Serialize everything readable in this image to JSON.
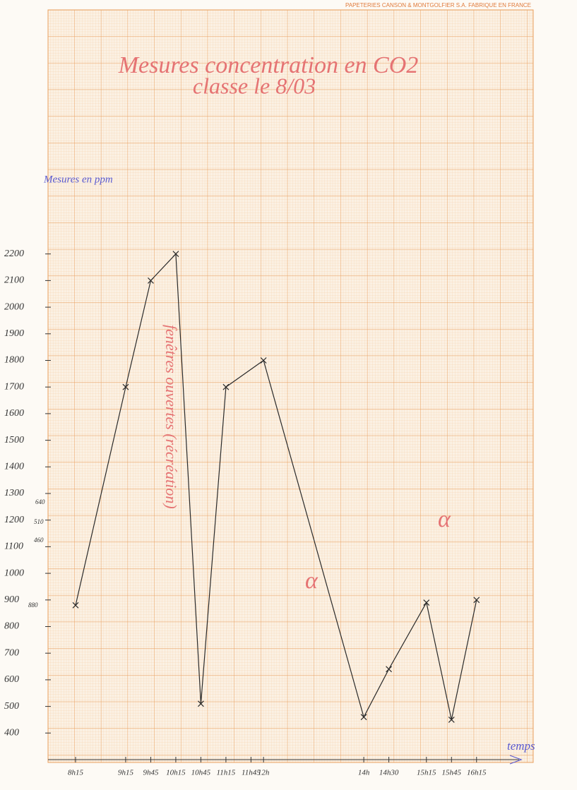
{
  "header": "PAPETERIES CANSON & MONTGOLFIER S.A. FABRIQUE EN FRANCE",
  "chart_data": {
    "type": "line",
    "title": "Mesures concentration en CO2",
    "subtitle": "classe le 8/03",
    "y_label": "Mesures en ppm",
    "x_label": "temps",
    "annotations": [
      "fenêtres ouvertes (récréation)",
      "α",
      "α"
    ],
    "axis_notes": [
      "880",
      "640",
      "510",
      "460"
    ],
    "xlim": [
      7.75,
      17
    ],
    "xticks": [
      {
        "value": 8.25,
        "label": "8h15"
      },
      {
        "value": 9.25,
        "label": "9h15"
      },
      {
        "value": 9.75,
        "label": "9h45"
      },
      {
        "value": 10.25,
        "label": "10h15"
      },
      {
        "value": 10.75,
        "label": "10h45"
      },
      {
        "value": 11.25,
        "label": "11h15"
      },
      {
        "value": 11.75,
        "label": "11h45"
      },
      {
        "value": 12,
        "label": "12h"
      },
      {
        "value": 14,
        "label": "14h"
      },
      {
        "value": 14.5,
        "label": "14h30"
      },
      {
        "value": 15.25,
        "label": "15h15"
      },
      {
        "value": 15.75,
        "label": "15h45"
      },
      {
        "value": 16.25,
        "label": "16h15"
      }
    ],
    "ylim": [
      300,
      2300
    ],
    "yticks": [
      400,
      500,
      600,
      700,
      800,
      900,
      1000,
      1100,
      1200,
      1300,
      1400,
      1500,
      1600,
      1700,
      1800,
      1900,
      2000,
      2100,
      2200
    ],
    "series": [
      {
        "name": "CO2",
        "color": "#2a2a2a",
        "x": [
          8.25,
          9.25,
          9.75,
          10.25,
          10.75,
          11.25,
          12,
          14,
          14.5,
          15.25,
          15.75,
          16.25
        ],
        "values": [
          880,
          1700,
          2100,
          2200,
          510,
          1700,
          1800,
          460,
          640,
          890,
          450,
          900
        ]
      }
    ]
  }
}
